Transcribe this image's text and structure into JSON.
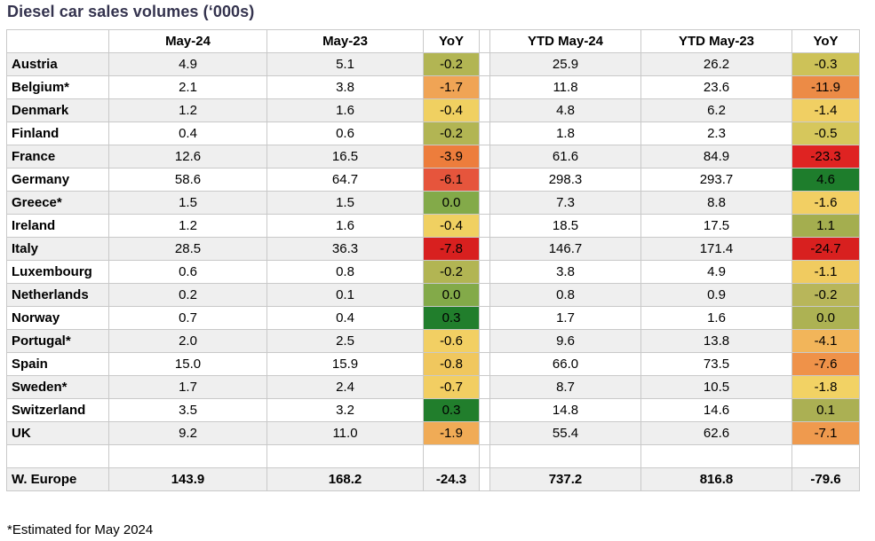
{
  "title": "Diesel car sales volumes (‘000s)",
  "footnote": "*Estimated for May 2024",
  "colors": {
    "title_text": "#34334e",
    "row_stripe": "#efefef",
    "grid_border": "#c9c9c9",
    "outer_border": "#9a9a9a",
    "scale_red": "#d8201f",
    "scale_yellow": "#f2cf63",
    "scale_green": "#1e7d2c"
  },
  "chart_data": {
    "type": "table",
    "title": "Diesel car sales volumes (‘000s)",
    "columns": [
      "",
      "May-24",
      "May-23",
      "YoY",
      "YTD May-24",
      "YTD May-23",
      "YoY"
    ],
    "rows": [
      {
        "label": "Austria",
        "values": [
          "4.9",
          "5.1",
          "-0.2",
          "25.9",
          "26.2",
          "-0.3"
        ],
        "fills": [
          null,
          null,
          "#b2b553",
          null,
          null,
          "#cdc258"
        ]
      },
      {
        "label": "Belgium*",
        "values": [
          "2.1",
          "3.8",
          "-1.7",
          "11.8",
          "23.6",
          "-11.9"
        ],
        "fills": [
          null,
          null,
          "#f0a455",
          null,
          null,
          "#ec8b46"
        ]
      },
      {
        "label": "Denmark",
        "values": [
          "1.2",
          "1.6",
          "-0.4",
          "4.8",
          "6.2",
          "-1.4"
        ],
        "fills": [
          null,
          null,
          "#f0d061",
          null,
          null,
          "#f0cf63"
        ]
      },
      {
        "label": "Finland",
        "values": [
          "0.4",
          "0.6",
          "-0.2",
          "1.8",
          "2.3",
          "-0.5"
        ],
        "fills": [
          null,
          null,
          "#b2b553",
          null,
          null,
          "#d6c75c"
        ]
      },
      {
        "label": "France",
        "values": [
          "12.6",
          "16.5",
          "-3.9",
          "61.6",
          "84.9",
          "-23.3"
        ],
        "fills": [
          null,
          null,
          "#ed7d3c",
          null,
          null,
          "#df2322"
        ]
      },
      {
        "label": "Germany",
        "values": [
          "58.6",
          "64.7",
          "-6.1",
          "298.3",
          "293.7",
          "4.6"
        ],
        "fills": [
          null,
          null,
          "#e6553c",
          null,
          null,
          "#1e7d2c"
        ]
      },
      {
        "label": "Greece*",
        "values": [
          "1.5",
          "1.5",
          "0.0",
          "7.3",
          "8.8",
          "-1.6"
        ],
        "fills": [
          null,
          null,
          "#83aa49",
          null,
          null,
          "#f2cf63"
        ]
      },
      {
        "label": "Ireland",
        "values": [
          "1.2",
          "1.6",
          "-0.4",
          "18.5",
          "17.5",
          "1.1"
        ],
        "fills": [
          null,
          null,
          "#f0d061",
          null,
          null,
          "#a4ae4f"
        ]
      },
      {
        "label": "Italy",
        "values": [
          "28.5",
          "36.3",
          "-7.8",
          "146.7",
          "171.4",
          "-24.7"
        ],
        "fills": [
          null,
          null,
          "#d8201f",
          null,
          null,
          "#d8201f"
        ]
      },
      {
        "label": "Luxembourg",
        "values": [
          "0.6",
          "0.8",
          "-0.2",
          "3.8",
          "4.9",
          "-1.1"
        ],
        "fills": [
          null,
          null,
          "#b2b553",
          null,
          null,
          "#f0cb60"
        ]
      },
      {
        "label": "Netherlands",
        "values": [
          "0.2",
          "0.1",
          "0.0",
          "0.8",
          "0.9",
          "-0.2"
        ],
        "fills": [
          null,
          null,
          "#83aa49",
          null,
          null,
          "#b8b65a"
        ]
      },
      {
        "label": "Norway",
        "values": [
          "0.7",
          "0.4",
          "0.3",
          "1.7",
          "1.6",
          "0.0"
        ],
        "fills": [
          null,
          null,
          "#217e2c",
          null,
          null,
          "#adb253"
        ]
      },
      {
        "label": "Portugal*",
        "values": [
          "2.0",
          "2.5",
          "-0.6",
          "9.6",
          "13.8",
          "-4.1"
        ],
        "fills": [
          null,
          null,
          "#f2cf63",
          null,
          null,
          "#f2b55a"
        ]
      },
      {
        "label": "Spain",
        "values": [
          "15.0",
          "15.9",
          "-0.8",
          "66.0",
          "73.5",
          "-7.6"
        ],
        "fills": [
          null,
          null,
          "#f0c75e",
          null,
          null,
          "#ef9249"
        ]
      },
      {
        "label": "Sweden*",
        "values": [
          "1.7",
          "2.4",
          "-0.7",
          "8.7",
          "10.5",
          "-1.8"
        ],
        "fills": [
          null,
          null,
          "#f2ce62",
          null,
          null,
          "#f2d264"
        ]
      },
      {
        "label": "Switzerland",
        "values": [
          "3.5",
          "3.2",
          "0.3",
          "14.8",
          "14.6",
          "0.1"
        ],
        "fills": [
          null,
          null,
          "#217e2c",
          null,
          null,
          "#abb053"
        ]
      },
      {
        "label": "UK",
        "values": [
          "9.2",
          "11.0",
          "-1.9",
          "55.4",
          "62.6",
          "-7.1"
        ],
        "fills": [
          null,
          null,
          "#f0ab56",
          null,
          null,
          "#ef9a4e"
        ]
      }
    ],
    "blank_row": {
      "label": "",
      "values": [
        "",
        "",
        "",
        "",
        "",
        ""
      ],
      "fills": [
        null,
        null,
        null,
        null,
        null,
        null
      ]
    },
    "total_row": {
      "label": "W. Europe",
      "values": [
        "143.9",
        "168.2",
        "-24.3",
        "737.2",
        "816.8",
        "-79.6"
      ],
      "fills": [
        null,
        null,
        null,
        null,
        null,
        null
      ],
      "bold": true
    },
    "footnote": "*Estimated for May 2024"
  }
}
